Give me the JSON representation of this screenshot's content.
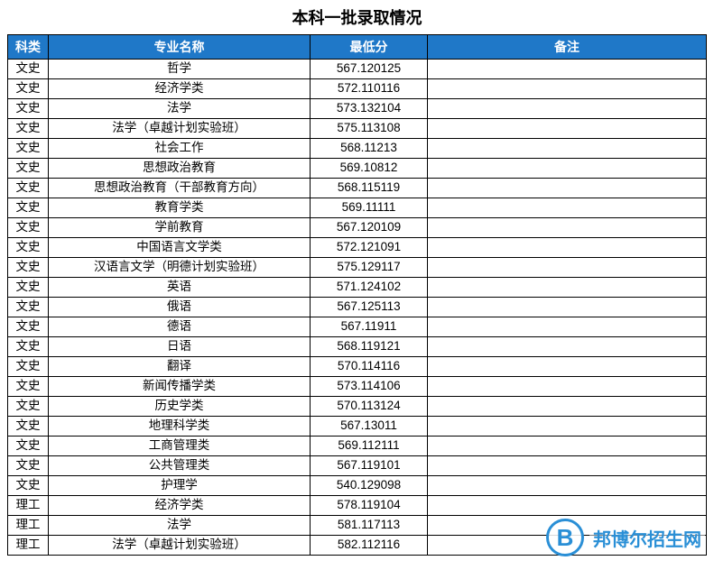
{
  "title": "本科一批录取情况",
  "header_bg_color": "#1f78c8",
  "header_text_color": "#ffffff",
  "border_color": "#000000",
  "columns": [
    {
      "key": "category",
      "label": "科类",
      "width_class": "col-category"
    },
    {
      "key": "major",
      "label": "专业名称",
      "width_class": "col-major"
    },
    {
      "key": "score",
      "label": "最低分",
      "width_class": "col-score"
    },
    {
      "key": "note",
      "label": "备注",
      "width_class": "col-note"
    }
  ],
  "rows": [
    {
      "category": "文史",
      "major": "哲学",
      "score": "567.120125",
      "note": ""
    },
    {
      "category": "文史",
      "major": "经济学类",
      "score": "572.110116",
      "note": ""
    },
    {
      "category": "文史",
      "major": "法学",
      "score": "573.132104",
      "note": ""
    },
    {
      "category": "文史",
      "major": "法学（卓越计划实验班）",
      "score": "575.113108",
      "note": ""
    },
    {
      "category": "文史",
      "major": "社会工作",
      "score": "568.11213",
      "note": ""
    },
    {
      "category": "文史",
      "major": "思想政治教育",
      "score": "569.10812",
      "note": ""
    },
    {
      "category": "文史",
      "major": "思想政治教育（干部教育方向）",
      "score": "568.115119",
      "note": ""
    },
    {
      "category": "文史",
      "major": "教育学类",
      "score": "569.11111",
      "note": ""
    },
    {
      "category": "文史",
      "major": "学前教育",
      "score": "567.120109",
      "note": ""
    },
    {
      "category": "文史",
      "major": "中国语言文学类",
      "score": "572.121091",
      "note": ""
    },
    {
      "category": "文史",
      "major": "汉语言文学（明德计划实验班）",
      "score": "575.129117",
      "note": ""
    },
    {
      "category": "文史",
      "major": "英语",
      "score": "571.124102",
      "note": ""
    },
    {
      "category": "文史",
      "major": "俄语",
      "score": "567.125113",
      "note": ""
    },
    {
      "category": "文史",
      "major": "德语",
      "score": "567.11911",
      "note": ""
    },
    {
      "category": "文史",
      "major": "日语",
      "score": "568.119121",
      "note": ""
    },
    {
      "category": "文史",
      "major": "翻译",
      "score": "570.114116",
      "note": ""
    },
    {
      "category": "文史",
      "major": "新闻传播学类",
      "score": "573.114106",
      "note": ""
    },
    {
      "category": "文史",
      "major": "历史学类",
      "score": "570.113124",
      "note": ""
    },
    {
      "category": "文史",
      "major": "地理科学类",
      "score": "567.13011",
      "note": ""
    },
    {
      "category": "文史",
      "major": "工商管理类",
      "score": "569.112111",
      "note": ""
    },
    {
      "category": "文史",
      "major": "公共管理类",
      "score": "567.119101",
      "note": ""
    },
    {
      "category": "文史",
      "major": "护理学",
      "score": "540.129098",
      "note": ""
    },
    {
      "category": "理工",
      "major": "经济学类",
      "score": "578.119104",
      "note": ""
    },
    {
      "category": "理工",
      "major": "法学",
      "score": "581.117113",
      "note": ""
    },
    {
      "category": "理工",
      "major": "法学（卓越计划实验班）",
      "score": "582.112116",
      "note": ""
    }
  ],
  "watermark": {
    "letter": "B",
    "text": "邦博尔招生网",
    "color": "#2a8fd6"
  }
}
